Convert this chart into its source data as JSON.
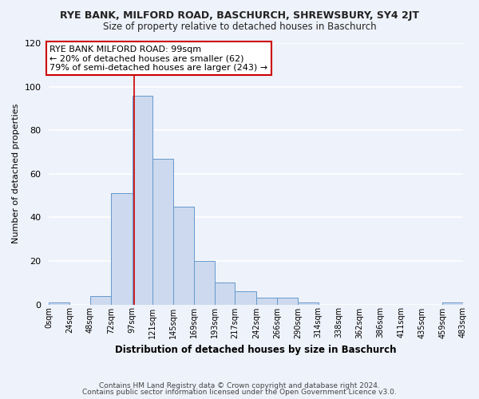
{
  "title1": "RYE BANK, MILFORD ROAD, BASCHURCH, SHREWSBURY, SY4 2JT",
  "title2": "Size of property relative to detached houses in Baschurch",
  "xlabel": "Distribution of detached houses by size in Baschurch",
  "ylabel": "Number of detached properties",
  "footnote1": "Contains HM Land Registry data © Crown copyright and database right 2024.",
  "footnote2": "Contains public sector information licensed under the Open Government Licence v3.0.",
  "annotation_line1": "RYE BANK MILFORD ROAD: 99sqm",
  "annotation_line2": "← 20% of detached houses are smaller (62)",
  "annotation_line3": "79% of semi-detached houses are larger (243) →",
  "property_sqm": 99,
  "bar_bins": [
    0,
    24,
    48,
    72,
    97,
    121,
    145,
    169,
    193,
    217,
    242,
    266,
    290,
    314,
    338,
    362,
    386,
    411,
    435,
    459,
    483
  ],
  "bar_heights": [
    1,
    0,
    4,
    51,
    96,
    67,
    45,
    20,
    10,
    6,
    3,
    3,
    1,
    0,
    0,
    0,
    0,
    0,
    0,
    1
  ],
  "tick_labels": [
    "0sqm",
    "24sqm",
    "48sqm",
    "72sqm",
    "97sqm",
    "121sqm",
    "145sqm",
    "169sqm",
    "193sqm",
    "217sqm",
    "242sqm",
    "266sqm",
    "290sqm",
    "314sqm",
    "338sqm",
    "362sqm",
    "386sqm",
    "411sqm",
    "435sqm",
    "459sqm",
    "483sqm"
  ],
  "bar_color": "#ccd9ee",
  "bar_edge_color": "#6699cc",
  "highlight_line_color": "#cc0000",
  "annotation_box_color": "#ffffff",
  "annotation_box_edge": "#cc0000",
  "bg_color": "#eef2fa",
  "grid_color": "#ffffff",
  "ylim": [
    0,
    120
  ],
  "yticks": [
    0,
    20,
    40,
    60,
    80,
    100,
    120
  ]
}
